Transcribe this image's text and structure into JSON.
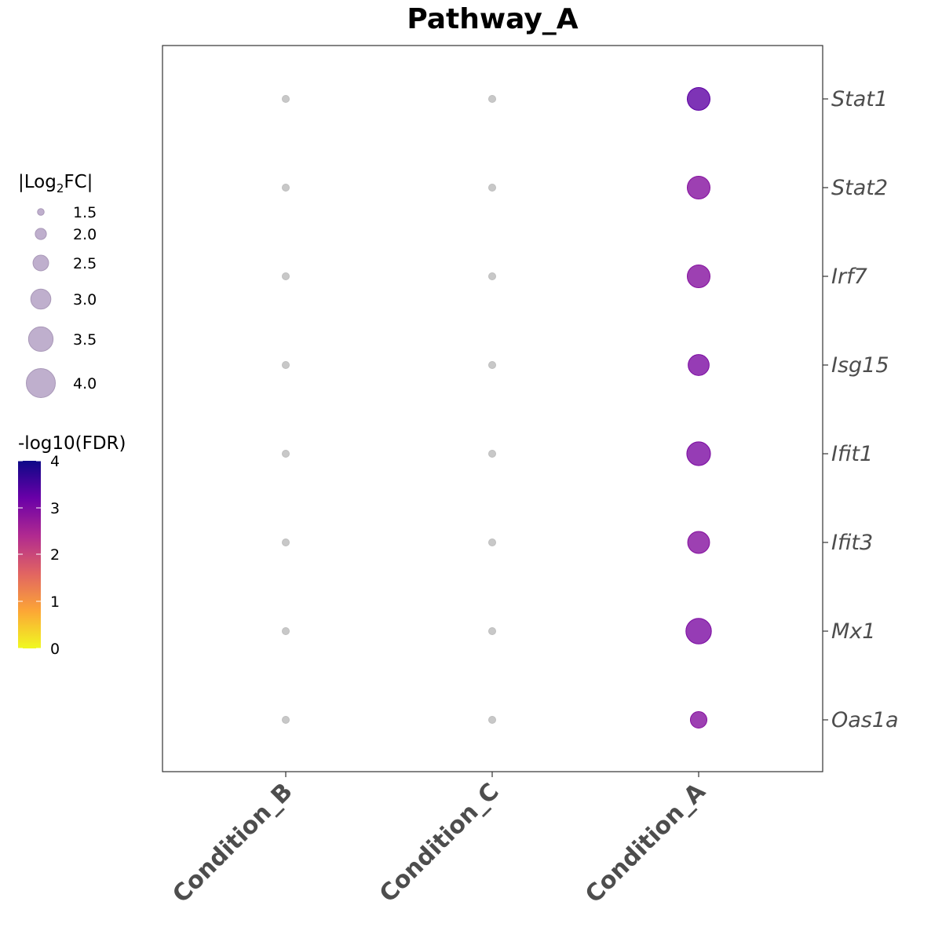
{
  "chart_data": {
    "type": "dot",
    "title": "Pathway_A",
    "categories": [
      "Condition_B",
      "Condition_C",
      "Condition_A"
    ],
    "genes": [
      "Stat1",
      "Stat2",
      "Irf7",
      "Isg15",
      "Ifit1",
      "Ifit3",
      "Mx1",
      "Oas1a"
    ],
    "points": [
      {
        "condition": "Condition_B",
        "gene": "Stat1",
        "log2fc": null,
        "fdr": null
      },
      {
        "condition": "Condition_B",
        "gene": "Stat2",
        "log2fc": null,
        "fdr": null
      },
      {
        "condition": "Condition_B",
        "gene": "Irf7",
        "log2fc": null,
        "fdr": null
      },
      {
        "condition": "Condition_B",
        "gene": "Isg15",
        "log2fc": null,
        "fdr": null
      },
      {
        "condition": "Condition_B",
        "gene": "Ifit1",
        "log2fc": null,
        "fdr": null
      },
      {
        "condition": "Condition_B",
        "gene": "Ifit3",
        "log2fc": null,
        "fdr": null
      },
      {
        "condition": "Condition_B",
        "gene": "Mx1",
        "log2fc": null,
        "fdr": null
      },
      {
        "condition": "Condition_B",
        "gene": "Oas1a",
        "log2fc": null,
        "fdr": null
      },
      {
        "condition": "Condition_C",
        "gene": "Stat1",
        "log2fc": null,
        "fdr": null
      },
      {
        "condition": "Condition_C",
        "gene": "Stat2",
        "log2fc": null,
        "fdr": null
      },
      {
        "condition": "Condition_C",
        "gene": "Irf7",
        "log2fc": null,
        "fdr": null
      },
      {
        "condition": "Condition_C",
        "gene": "Isg15",
        "log2fc": null,
        "fdr": null
      },
      {
        "condition": "Condition_C",
        "gene": "Ifit1",
        "log2fc": null,
        "fdr": null
      },
      {
        "condition": "Condition_C",
        "gene": "Ifit3",
        "log2fc": null,
        "fdr": null
      },
      {
        "condition": "Condition_C",
        "gene": "Mx1",
        "log2fc": null,
        "fdr": null
      },
      {
        "condition": "Condition_C",
        "gene": "Oas1a",
        "log2fc": null,
        "fdr": null
      },
      {
        "condition": "Condition_A",
        "gene": "Stat1",
        "log2fc": 3.3,
        "fdr": 3.3
      },
      {
        "condition": "Condition_A",
        "gene": "Stat2",
        "log2fc": 3.3,
        "fdr": 2.9
      },
      {
        "condition": "Condition_A",
        "gene": "Irf7",
        "log2fc": 3.3,
        "fdr": 2.9
      },
      {
        "condition": "Condition_A",
        "gene": "Isg15",
        "log2fc": 3.1,
        "fdr": 3.0
      },
      {
        "condition": "Condition_A",
        "gene": "Ifit1",
        "log2fc": 3.4,
        "fdr": 3.0
      },
      {
        "condition": "Condition_A",
        "gene": "Ifit3",
        "log2fc": 3.2,
        "fdr": 2.9
      },
      {
        "condition": "Condition_A",
        "gene": "Mx1",
        "log2fc": 3.6,
        "fdr": 3.0
      },
      {
        "condition": "Condition_A",
        "gene": "Oas1a",
        "log2fc": 2.6,
        "fdr": 2.9
      }
    ],
    "na_color": "#bebebe",
    "size_legend": {
      "title": "|Log2FC|",
      "values": [
        1.5,
        2.0,
        2.5,
        3.0,
        3.5,
        4.0
      ],
      "labels": [
        "1.5",
        "2.0",
        "2.5",
        "3.0",
        "3.5",
        "4.0"
      ],
      "color": "#b8a6c8"
    },
    "color_legend": {
      "title": "-log10(FDR)",
      "range": [
        0,
        4
      ],
      "ticks": [
        "0",
        "1",
        "2",
        "3",
        "4"
      ],
      "colors": [
        "#f0f921",
        "#fca636",
        "#e16462",
        "#b12a90",
        "#6a00a8",
        "#0d0887"
      ]
    },
    "legend_position": "left",
    "grid": false
  }
}
